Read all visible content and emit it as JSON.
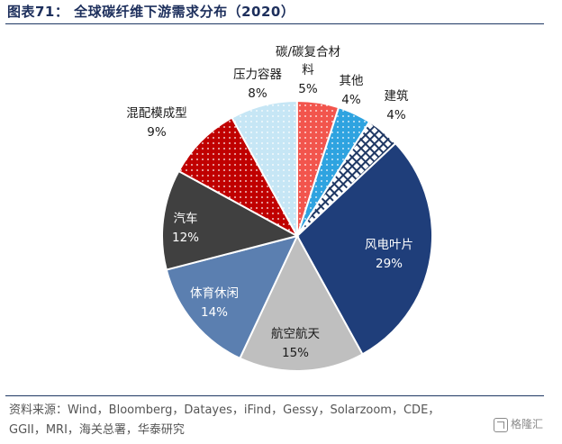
{
  "header": {
    "title": "图表71：  全球碳纤维下游需求分布（2020）"
  },
  "footer": {
    "source_line1": "资料来源：Wind，Bloomberg，Datayes，iFind，Gessy，Solarzoom，CDE，",
    "source_line2": "GGII，MRI，海关总署，华泰研究",
    "watermark": "格隆汇"
  },
  "colors": {
    "wind": "#1f3e7a",
    "aero": "#bfbfbf",
    "sports": "#5b7fb0",
    "auto": "#404040",
    "molding": "#c00000",
    "pressure": "#c6e6f5",
    "composite": "#f2554d",
    "other": "#2ea3e0",
    "building": "#1f3864",
    "accent": "#1d2f5c"
  },
  "chart_data": {
    "type": "pie",
    "title": "全球碳纤维下游需求分布（2020）",
    "unit": "%",
    "slices": [
      {
        "label": "风电叶片",
        "value": 29,
        "display": "29%",
        "color": "#1f3e7a",
        "pattern": "solid"
      },
      {
        "label": "航空航天",
        "value": 15,
        "display": "15%",
        "color": "#bfbfbf",
        "pattern": "solid"
      },
      {
        "label": "体育休闲",
        "value": 14,
        "display": "14%",
        "color": "#5b7fb0",
        "pattern": "solid"
      },
      {
        "label": "汽车",
        "value": 12,
        "display": "12%",
        "color": "#404040",
        "pattern": "solid"
      },
      {
        "label": "混配模成型",
        "value": 9,
        "display": "9%",
        "color": "#c00000",
        "pattern": "dots"
      },
      {
        "label": "压力容器",
        "value": 8,
        "display": "8%",
        "color": "#c6e6f5",
        "pattern": "dots"
      },
      {
        "label": "碳/碳复合材料",
        "value": 5,
        "display": "5%",
        "color": "#f2554d",
        "pattern": "dots"
      },
      {
        "label": "其他",
        "value": 4,
        "display": "4%",
        "color": "#2ea3e0",
        "pattern": "dots"
      },
      {
        "label": "建筑",
        "value": 4,
        "display": "4%",
        "color": "#1f3864",
        "pattern": "crosshatch"
      }
    ]
  }
}
